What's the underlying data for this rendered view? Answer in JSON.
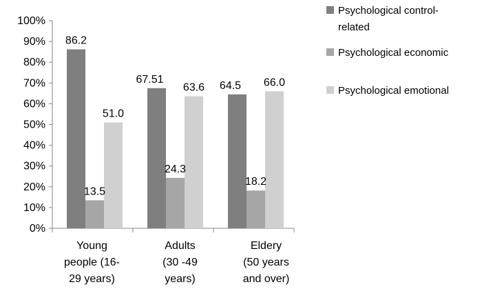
{
  "chart_data": {
    "type": "bar",
    "categories": [
      [
        "Young",
        "people (16-",
        "29 years)"
      ],
      [
        "Adults",
        "(30 -49",
        "years)"
      ],
      [
        "Eldery",
        "(50 years",
        "and over)"
      ]
    ],
    "series": [
      {
        "name": [
          "Psychological control-",
          "related"
        ],
        "color": "#7f7f7f",
        "values": [
          86.2,
          67.51,
          64.5
        ],
        "labels": [
          "86.2",
          "67.51",
          "64.5"
        ]
      },
      {
        "name": [
          "Psychological  economic"
        ],
        "color": "#a6a6a6",
        "values": [
          13.5,
          24.3,
          18.2
        ],
        "labels": [
          "13.5",
          "24.3",
          "18.2"
        ]
      },
      {
        "name": [
          "Psychological emotional"
        ],
        "color": "#d0d0d0",
        "values": [
          51.0,
          63.6,
          66.0
        ],
        "labels": [
          "51.0",
          "63.6",
          "66.0"
        ]
      }
    ],
    "yticks": [
      "0%",
      "10%",
      "20%",
      "30%",
      "40%",
      "50%",
      "60%",
      "70%",
      "80%",
      "90%",
      "100%"
    ],
    "ylim": [
      0,
      100
    ],
    "grid": false,
    "legend_position": "right"
  }
}
